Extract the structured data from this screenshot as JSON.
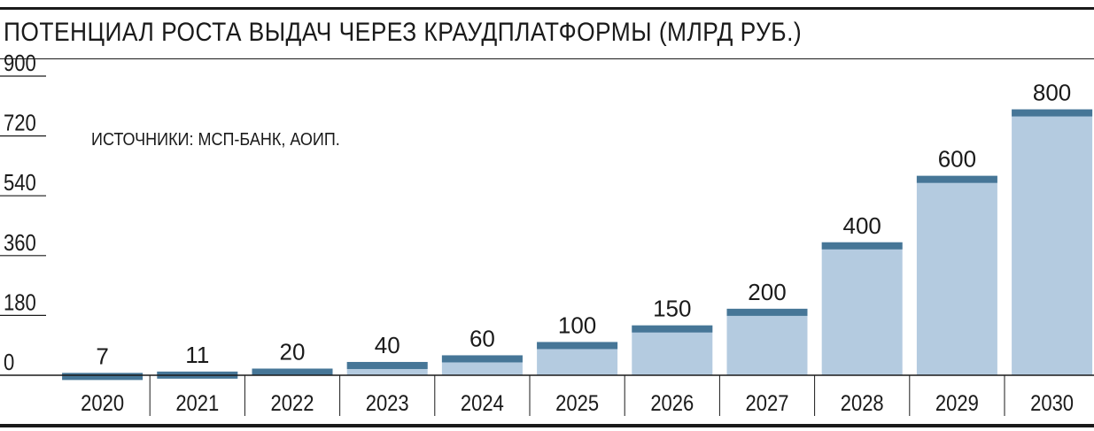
{
  "chart_data": {
    "type": "bar",
    "title": "ПОТЕНЦИАЛ РОСТА ВЫДАЧ ЧЕРЕЗ КРАУДПЛАТФОРМЫ (МЛРД РУБ.)",
    "source_note": "ИСТОЧНИКИ: МСП-БАНК, АОИП.",
    "categories": [
      "2020",
      "2021",
      "2022",
      "2023",
      "2024",
      "2025",
      "2026",
      "2027",
      "2028",
      "2029",
      "2030"
    ],
    "values": [
      7,
      11,
      20,
      40,
      60,
      100,
      150,
      200,
      400,
      600,
      800
    ],
    "value_labels": [
      "7",
      "11",
      "20",
      "40",
      "60",
      "100",
      "150",
      "200",
      "400",
      "600",
      "800"
    ],
    "yticks": [
      "0",
      "180",
      "360",
      "540",
      "720",
      "900"
    ],
    "ylim": [
      0,
      900
    ],
    "grid": false,
    "colors": {
      "bar_fill": "#b4cbe0",
      "bar_cap": "#467697",
      "text": "#1a1a1a",
      "rule": "#1a1a1a"
    }
  }
}
